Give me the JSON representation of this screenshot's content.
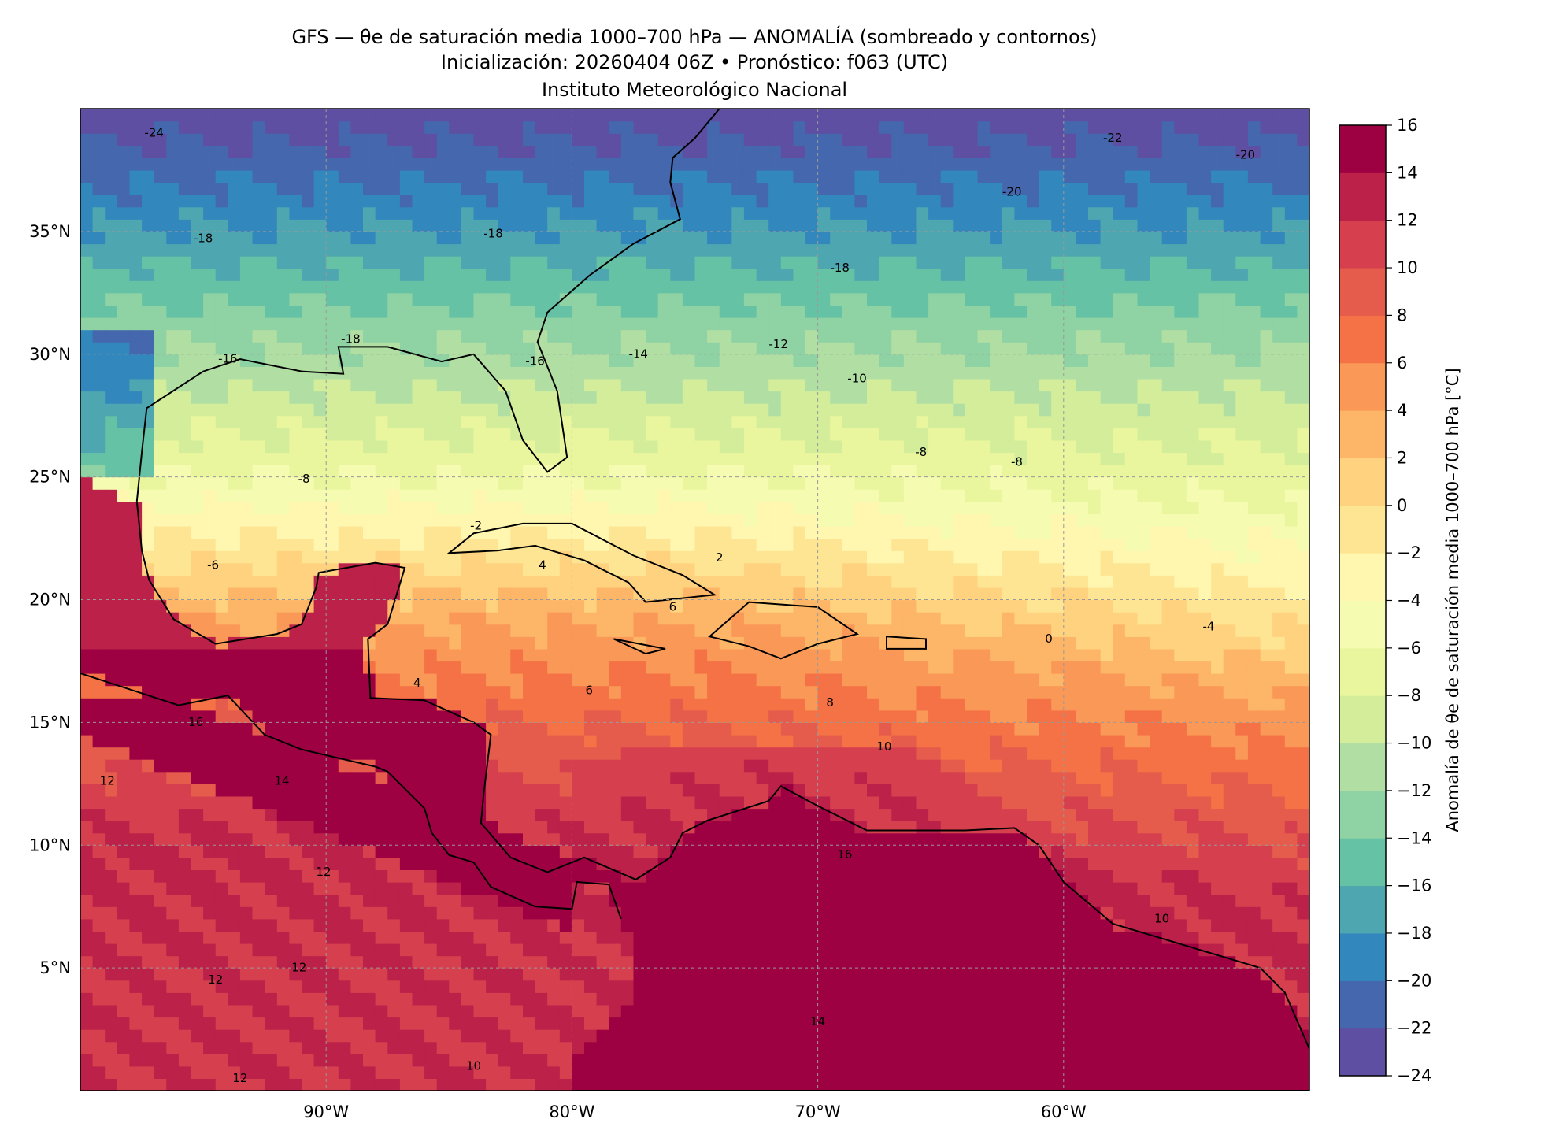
{
  "chart_data": {
    "type": "heatmap",
    "title_lines": [
      "GFS — θe de saturación media 1000–700 hPa — ANOMALÍA (sombreado y contornos)",
      "Inicialización: 20260404 06Z   •   Pronóstico: f063 (UTC)",
      "Instituto Meteorológico Nacional"
    ],
    "xlim": [
      -100,
      -50
    ],
    "ylim": [
      0,
      40
    ],
    "grid": true,
    "x_ticks": [
      {
        "value": -90,
        "label": "90°W"
      },
      {
        "value": -80,
        "label": "80°W"
      },
      {
        "value": -70,
        "label": "70°W"
      },
      {
        "value": -60,
        "label": "60°W"
      }
    ],
    "y_ticks": [
      {
        "value": 35,
        "label": "35°N"
      },
      {
        "value": 30,
        "label": "30°N"
      },
      {
        "value": 25,
        "label": "25°N"
      },
      {
        "value": 20,
        "label": "20°N"
      },
      {
        "value": 15,
        "label": "15°N"
      },
      {
        "value": 10,
        "label": "10°N"
      },
      {
        "value": 5,
        "label": "5°N"
      }
    ],
    "colorbar": {
      "label": "Anomalía de θe de saturación media 1000–700 hPa [°C]",
      "levels": [
        -24,
        -22,
        -20,
        -18,
        -16,
        -14,
        -12,
        -10,
        -8,
        -6,
        -4,
        -2,
        0,
        2,
        4,
        6,
        8,
        10,
        12,
        14,
        16
      ],
      "tick_labels": [
        "−24",
        "−22",
        "−20",
        "−18",
        "−16",
        "−14",
        "−12",
        "−10",
        "−8",
        "−6",
        "−4",
        "−2",
        "0",
        "2",
        "4",
        "6",
        "8",
        "10",
        "12",
        "14",
        "16"
      ],
      "colors": [
        "#5e4fa2",
        "#4467ad",
        "#3288bd",
        "#4ea6b0",
        "#66c2a5",
        "#8fd2a4",
        "#b1dfa3",
        "#d3ed9b",
        "#e9f69e",
        "#f6fbb2",
        "#fff6af",
        "#fee593",
        "#fed27f",
        "#fdb567",
        "#fa9857",
        "#f47245",
        "#e55c4c",
        "#d6404e",
        "#bb2149",
        "#9e0142"
      ]
    },
    "contour_labels": [
      {
        "text": "-24",
        "lon": -97,
        "lat": 39
      },
      {
        "text": "-18",
        "lon": -95,
        "lat": 34.7
      },
      {
        "text": "-18",
        "lon": -83.2,
        "lat": 34.9
      },
      {
        "text": "-18",
        "lon": -89,
        "lat": 30.6
      },
      {
        "text": "-16",
        "lon": -94,
        "lat": 29.8
      },
      {
        "text": "-16",
        "lon": -81.5,
        "lat": 29.7
      },
      {
        "text": "-14",
        "lon": -77.3,
        "lat": 30.0
      },
      {
        "text": "-12",
        "lon": -71.6,
        "lat": 30.4
      },
      {
        "text": "-10",
        "lon": -68.4,
        "lat": 29.0
      },
      {
        "text": "-18",
        "lon": -69.1,
        "lat": 33.5
      },
      {
        "text": "-20",
        "lon": -62.1,
        "lat": 36.6
      },
      {
        "text": "-22",
        "lon": -58,
        "lat": 38.8
      },
      {
        "text": "-20",
        "lon": -52.6,
        "lat": 38.1
      },
      {
        "text": "-8",
        "lon": -65.8,
        "lat": 26.0
      },
      {
        "text": "-8",
        "lon": -61.9,
        "lat": 25.6
      },
      {
        "text": "-8",
        "lon": -90.9,
        "lat": 24.9
      },
      {
        "text": "-2",
        "lon": -83.9,
        "lat": 23.0
      },
      {
        "text": "-6",
        "lon": -94.6,
        "lat": 21.4
      },
      {
        "text": "4",
        "lon": -81.2,
        "lat": 21.4
      },
      {
        "text": "2",
        "lon": -74,
        "lat": 21.7
      },
      {
        "text": "6",
        "lon": -75.9,
        "lat": 19.7
      },
      {
        "text": "0",
        "lon": -60.6,
        "lat": 18.4
      },
      {
        "text": "-4",
        "lon": -54.1,
        "lat": 18.9
      },
      {
        "text": "4",
        "lon": -86.3,
        "lat": 16.6
      },
      {
        "text": "6",
        "lon": -79.3,
        "lat": 16.3
      },
      {
        "text": "8",
        "lon": -69.5,
        "lat": 15.8
      },
      {
        "text": "10",
        "lon": -67.3,
        "lat": 14.0
      },
      {
        "text": "16",
        "lon": -95.3,
        "lat": 15.0
      },
      {
        "text": "14",
        "lon": -91.8,
        "lat": 12.6
      },
      {
        "text": "12",
        "lon": -98.9,
        "lat": 12.6
      },
      {
        "text": "12",
        "lon": -90.1,
        "lat": 8.9
      },
      {
        "text": "12",
        "lon": -91.1,
        "lat": 5.0
      },
      {
        "text": "12",
        "lon": -94.5,
        "lat": 4.5
      },
      {
        "text": "16",
        "lon": -68.9,
        "lat": 9.6
      },
      {
        "text": "10",
        "lon": -56,
        "lat": 7
      },
      {
        "text": "14",
        "lon": -70.0,
        "lat": 2.8
      },
      {
        "text": "10",
        "lon": -84.0,
        "lat": 1.0
      },
      {
        "text": "12",
        "lon": -93.5,
        "lat": 0.5
      }
    ]
  }
}
